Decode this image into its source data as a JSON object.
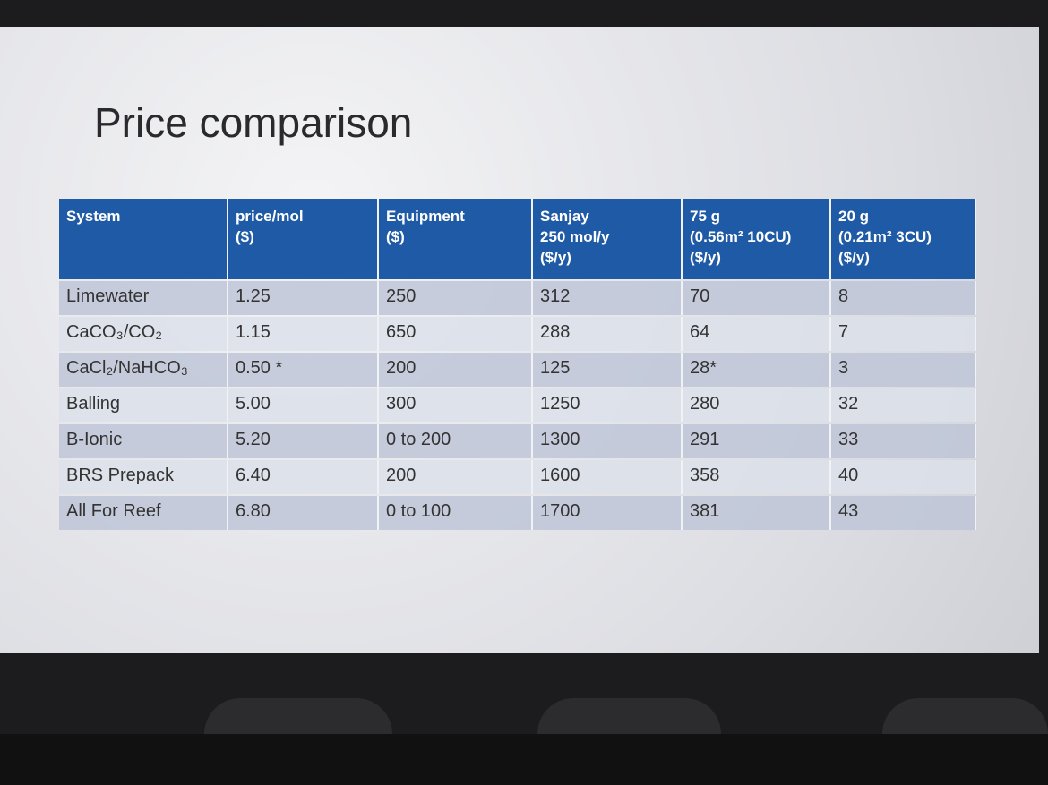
{
  "slide": {
    "title": "Price comparison",
    "table": {
      "header": [
        [
          "System"
        ],
        [
          "price/mol",
          "($)"
        ],
        [
          "Equipment",
          "($)"
        ],
        [
          "Sanjay",
          "250 mol/y",
          "($/y)"
        ],
        [
          "75 g",
          "(0.56m² 10CU)",
          "($/y)"
        ],
        [
          "20 g",
          "(0.21m² 3CU)",
          "($/y)"
        ]
      ],
      "rows": [
        [
          "Limewater",
          "1.25",
          "250",
          "312",
          "70",
          "8"
        ],
        [
          "CaCO₃/CO₂",
          "1.15",
          "650",
          "288",
          "64",
          "7"
        ],
        [
          "CaCl₂/NaHCO₃",
          "0.50 *",
          "200",
          "125",
          "28*",
          "3"
        ],
        [
          "Balling",
          "5.00",
          "300",
          "1250",
          "280",
          "32"
        ],
        [
          "B-Ionic",
          "5.20",
          "0 to 200",
          "1300",
          "291",
          "33"
        ],
        [
          "BRS Prepack",
          "6.40",
          "200",
          "1600",
          "358",
          "40"
        ],
        [
          "All For Reef",
          "6.80",
          "0 to 100",
          "1700",
          "381",
          "43"
        ]
      ]
    }
  }
}
